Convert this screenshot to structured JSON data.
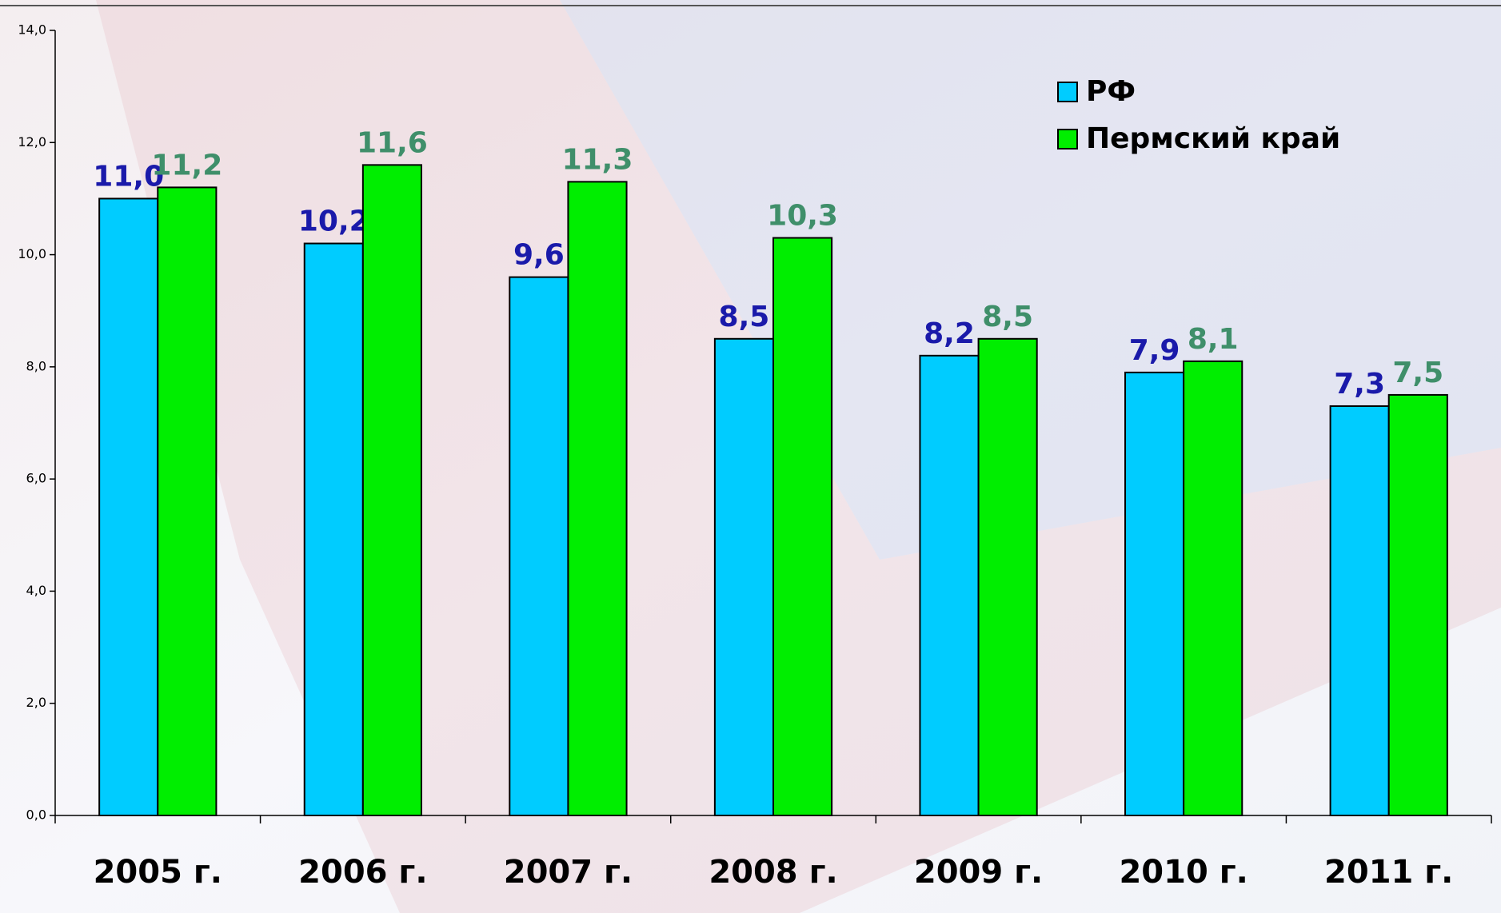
{
  "chart_data": {
    "type": "bar",
    "categories": [
      "2005 г.",
      "2006 г.",
      "2007 г.",
      "2008 г.",
      "2009 г.",
      "2010 г.",
      "2011 г."
    ],
    "series": [
      {
        "name": "РФ",
        "color": "#00ccff",
        "label_color": "#1a1aaa",
        "values": [
          11.0,
          10.2,
          9.6,
          8.5,
          8.2,
          7.9,
          7.3
        ],
        "value_labels": [
          "11,0",
          "10,2",
          "9,6",
          "8,5",
          "8,2",
          "7,9",
          "7,3"
        ]
      },
      {
        "name": "Пермский край",
        "color": "#00ee00",
        "label_color": "#3f8f6a",
        "values": [
          11.2,
          11.6,
          11.3,
          10.3,
          8.5,
          8.1,
          7.5
        ],
        "value_labels": [
          "11,2",
          "11,6",
          "11,3",
          "10,3",
          "8,5",
          "8,1",
          "7,5"
        ]
      }
    ],
    "ylim": [
      0,
      14
    ],
    "yticks": [
      {
        "value": 0,
        "label": "0,0"
      },
      {
        "value": 2,
        "label": "2,0"
      },
      {
        "value": 4,
        "label": "4,0"
      },
      {
        "value": 6,
        "label": "6,0"
      },
      {
        "value": 8,
        "label": "8,0"
      },
      {
        "value": 10,
        "label": "10,0"
      },
      {
        "value": 12,
        "label": "12,0"
      },
      {
        "value": 14,
        "label": "14,0"
      }
    ],
    "grid": false,
    "legend": "top-right"
  }
}
